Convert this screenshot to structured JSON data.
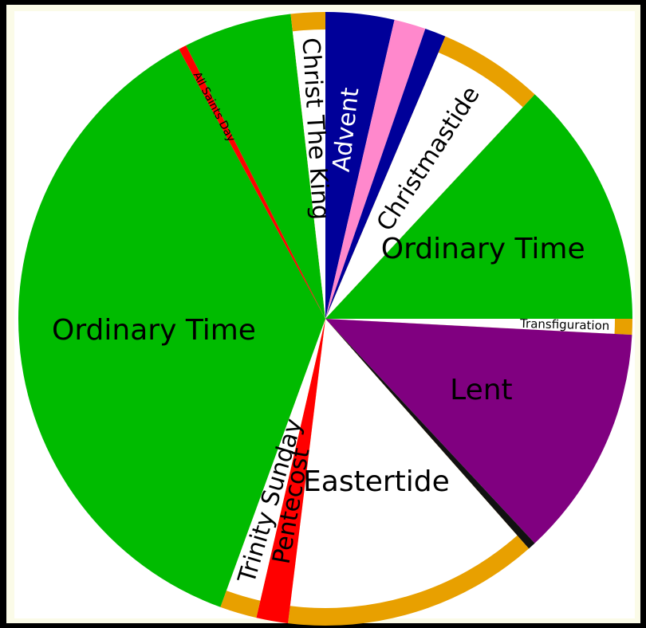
{
  "chart_data": {
    "type": "pie",
    "categories": [
      "Advent",
      null,
      null,
      "Christmastide",
      "Ordinary Time",
      "Transfiguration",
      "Lent",
      null,
      "Eastertide",
      "Pentecost",
      "Trinity Sunday",
      "Ordinary Time",
      "All Saints Day",
      null,
      "Christ The King"
    ],
    "values": [
      13,
      6,
      4,
      20,
      47,
      3,
      44,
      1.5,
      48.5,
      6,
      7,
      131.5,
      1.5,
      20.5,
      6.5
    ],
    "colors": [
      "#000099",
      "#ff88cc",
      "#000099",
      "#ffffff",
      "#00bb00",
      "#ffffff",
      "#800080",
      "#111111",
      "#ffffff",
      "#ff0000",
      "#ffffff",
      "#00bb00",
      "#ff0000",
      "#00bb00",
      "#ffffff"
    ],
    "ring_colors": [
      null,
      null,
      null,
      "#e8a000",
      null,
      "#e8a000",
      null,
      null,
      "#e8a000",
      null,
      "#e8a000",
      null,
      null,
      null,
      "#e8a000"
    ],
    "label_colors": [
      "#ffffff",
      null,
      null,
      "#000000",
      "#000000",
      "#000000",
      "#000000",
      null,
      "#000000",
      "#000000",
      "#000000",
      "#000000",
      "#000000",
      null,
      "#000000"
    ]
  }
}
